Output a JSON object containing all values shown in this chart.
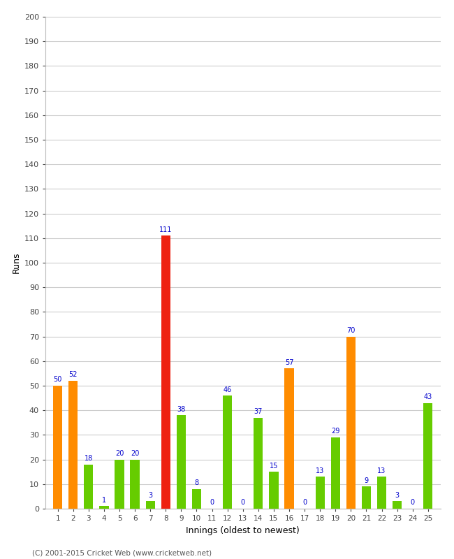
{
  "innings": [
    1,
    2,
    3,
    4,
    5,
    6,
    7,
    8,
    9,
    10,
    11,
    12,
    13,
    14,
    15,
    16,
    17,
    18,
    19,
    20,
    21,
    22,
    23,
    24,
    25
  ],
  "values": [
    50,
    52,
    18,
    1,
    20,
    20,
    3,
    111,
    38,
    8,
    0,
    46,
    0,
    37,
    15,
    57,
    0,
    13,
    29,
    70,
    9,
    13,
    3,
    0,
    43
  ],
  "colors": [
    "#ff8c00",
    "#ff8c00",
    "#66cc00",
    "#66cc00",
    "#66cc00",
    "#66cc00",
    "#66cc00",
    "#ee2211",
    "#66cc00",
    "#66cc00",
    "#66cc00",
    "#66cc00",
    "#66cc00",
    "#66cc00",
    "#66cc00",
    "#ff8c00",
    "#66cc00",
    "#66cc00",
    "#66cc00",
    "#ff8c00",
    "#66cc00",
    "#66cc00",
    "#66cc00",
    "#66cc00",
    "#66cc00"
  ],
  "xlabel": "Innings (oldest to newest)",
  "ylabel": "Runs",
  "ylim": [
    0,
    200
  ],
  "yticks": [
    0,
    10,
    20,
    30,
    40,
    50,
    60,
    70,
    80,
    90,
    100,
    110,
    120,
    130,
    140,
    150,
    160,
    170,
    180,
    190,
    200
  ],
  "footer": "(C) 2001-2015 Cricket Web (www.cricketweb.net)",
  "label_color": "#0000cc",
  "background_color": "#ffffff",
  "grid_color": "#cccccc",
  "bar_width": 0.6
}
